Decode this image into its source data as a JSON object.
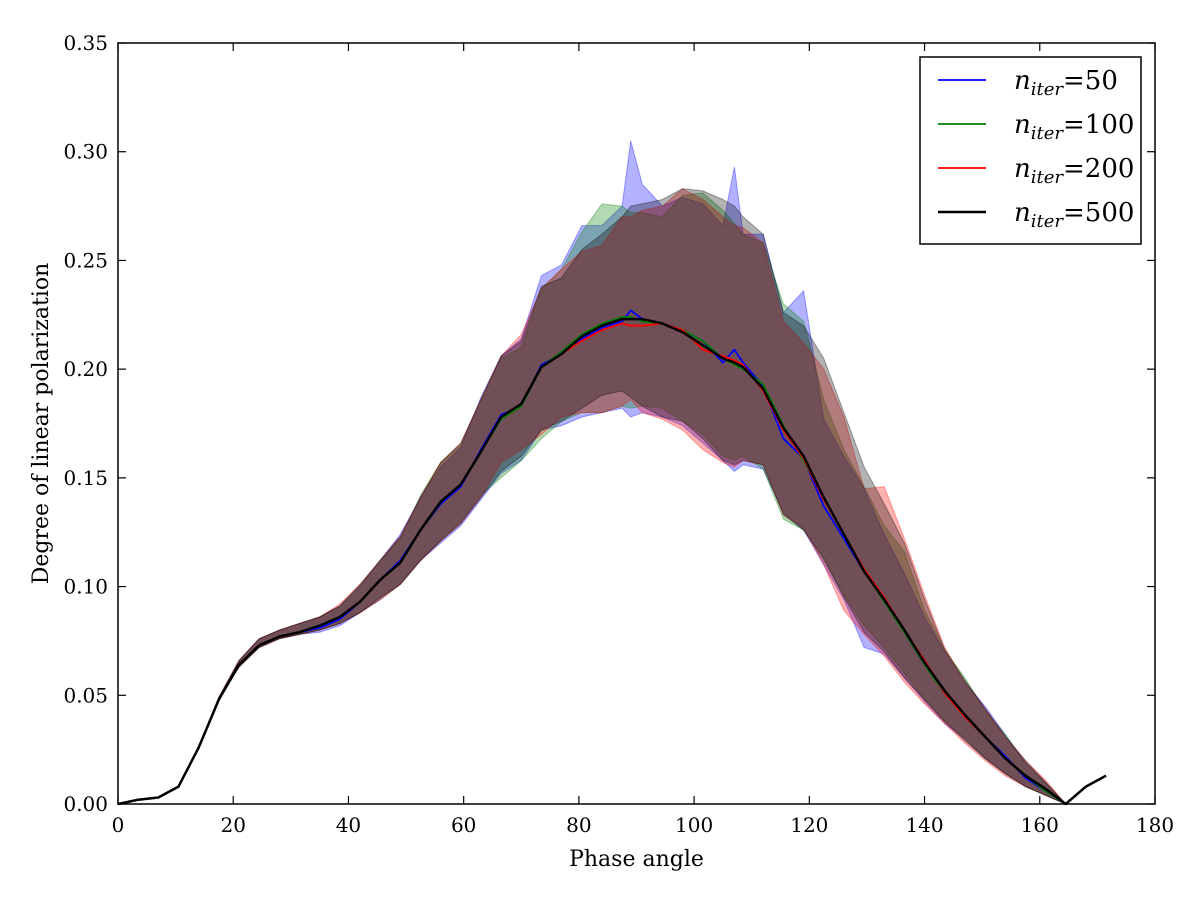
{
  "chart_data": {
    "type": "line",
    "title": "",
    "xlabel": "Phase angle",
    "ylabel": "Degree of linear polarization",
    "xlim": [
      0,
      180
    ],
    "ylim": [
      0,
      0.35
    ],
    "xticks": [
      0,
      20,
      40,
      60,
      80,
      100,
      120,
      140,
      160,
      180
    ],
    "xtick_labels": [
      "0",
      "20",
      "40",
      "60",
      "80",
      "100",
      "120",
      "140",
      "160",
      "180"
    ],
    "yticks": [
      0.0,
      0.05,
      0.1,
      0.15,
      0.2,
      0.25,
      0.3,
      0.35
    ],
    "ytick_labels": [
      "0.00",
      "0.05",
      "0.10",
      "0.15",
      "0.20",
      "0.25",
      "0.30",
      "0.35"
    ],
    "grid": false,
    "legend_position": "top-right",
    "x": [
      0,
      3.5,
      7,
      10.5,
      14,
      17.5,
      21,
      24.5,
      28,
      31.5,
      35,
      38.5,
      42,
      45.5,
      49,
      52.5,
      56,
      59.5,
      63,
      66.5,
      70,
      73.5,
      77,
      80.5,
      84,
      87.5,
      89,
      91,
      94.5,
      98,
      101.5,
      105,
      107,
      108.5,
      112,
      115.5,
      119,
      122.5,
      126,
      129.5,
      133,
      136.5,
      140,
      143.5,
      147,
      150.5,
      154,
      157.5,
      161,
      164.5,
      168,
      171.5
    ],
    "series": [
      {
        "name_prefix": "n",
        "name_sub": "iter",
        "name_value": "=50",
        "color": "#0000ff",
        "values": [
          0,
          0.002,
          0.003,
          0.008,
          0.026,
          0.048,
          0.064,
          0.073,
          0.077,
          0.079,
          0.081,
          0.085,
          0.093,
          0.103,
          0.112,
          0.126,
          0.138,
          0.146,
          0.163,
          0.179,
          0.183,
          0.202,
          0.207,
          0.214,
          0.219,
          0.222,
          0.227,
          0.223,
          0.221,
          0.218,
          0.213,
          0.203,
          0.209,
          0.203,
          0.192,
          0.168,
          0.159,
          0.137,
          0.122,
          0.107,
          0.094,
          0.079,
          0.064,
          0.052,
          0.041,
          0.031,
          0.022,
          0.012,
          0.006,
          0.0,
          0.008,
          0.013
        ],
        "lower": [
          0,
          0.002,
          0.003,
          0.008,
          0.026,
          0.048,
          0.063,
          0.072,
          0.076,
          0.078,
          0.079,
          0.082,
          0.088,
          0.094,
          0.101,
          0.112,
          0.12,
          0.128,
          0.14,
          0.152,
          0.158,
          0.172,
          0.174,
          0.178,
          0.18,
          0.182,
          0.178,
          0.18,
          0.178,
          0.174,
          0.166,
          0.158,
          0.153,
          0.156,
          0.154,
          0.134,
          0.126,
          0.11,
          0.094,
          0.072,
          0.069,
          0.058,
          0.047,
          0.037,
          0.03,
          0.021,
          0.014,
          0.008,
          0.004,
          0.0,
          0.008,
          0.013
        ],
        "upper": [
          0,
          0.002,
          0.003,
          0.008,
          0.026,
          0.049,
          0.066,
          0.076,
          0.08,
          0.083,
          0.086,
          0.091,
          0.1,
          0.112,
          0.124,
          0.141,
          0.155,
          0.164,
          0.187,
          0.206,
          0.214,
          0.243,
          0.248,
          0.266,
          0.266,
          0.275,
          0.305,
          0.285,
          0.275,
          0.279,
          0.276,
          0.266,
          0.293,
          0.262,
          0.262,
          0.226,
          0.236,
          0.177,
          0.16,
          0.145,
          0.124,
          0.106,
          0.086,
          0.07,
          0.056,
          0.045,
          0.032,
          0.019,
          0.01,
          0.0,
          0.008,
          0.013
        ]
      },
      {
        "name_prefix": "n",
        "name_sub": "iter",
        "name_value": "=100",
        "color": "#008000",
        "values": [
          0,
          0.002,
          0.003,
          0.008,
          0.026,
          0.048,
          0.064,
          0.073,
          0.077,
          0.079,
          0.082,
          0.086,
          0.093,
          0.103,
          0.111,
          0.126,
          0.139,
          0.147,
          0.162,
          0.177,
          0.183,
          0.201,
          0.208,
          0.216,
          0.221,
          0.224,
          0.224,
          0.222,
          0.221,
          0.218,
          0.213,
          0.205,
          0.202,
          0.2,
          0.193,
          0.174,
          0.158,
          0.141,
          0.124,
          0.107,
          0.093,
          0.079,
          0.064,
          0.051,
          0.041,
          0.031,
          0.021,
          0.013,
          0.006,
          0.0,
          0.008,
          0.013
        ],
        "lower": [
          0,
          0.002,
          0.003,
          0.008,
          0.026,
          0.048,
          0.063,
          0.072,
          0.076,
          0.078,
          0.08,
          0.083,
          0.088,
          0.094,
          0.101,
          0.112,
          0.121,
          0.13,
          0.142,
          0.15,
          0.158,
          0.168,
          0.176,
          0.18,
          0.18,
          0.183,
          0.182,
          0.183,
          0.182,
          0.176,
          0.17,
          0.16,
          0.158,
          0.16,
          0.154,
          0.131,
          0.126,
          0.112,
          0.096,
          0.082,
          0.072,
          0.06,
          0.048,
          0.038,
          0.03,
          0.021,
          0.014,
          0.008,
          0.004,
          0.0,
          0.008,
          0.013
        ],
        "upper": [
          0,
          0.002,
          0.003,
          0.008,
          0.026,
          0.049,
          0.066,
          0.076,
          0.08,
          0.083,
          0.086,
          0.091,
          0.1,
          0.112,
          0.122,
          0.142,
          0.157,
          0.165,
          0.186,
          0.205,
          0.21,
          0.237,
          0.246,
          0.263,
          0.276,
          0.275,
          0.272,
          0.272,
          0.27,
          0.28,
          0.281,
          0.273,
          0.267,
          0.262,
          0.258,
          0.23,
          0.222,
          0.186,
          0.163,
          0.146,
          0.128,
          0.116,
          0.089,
          0.071,
          0.058,
          0.043,
          0.032,
          0.019,
          0.01,
          0.0,
          0.008,
          0.013
        ]
      },
      {
        "name_prefix": "n",
        "name_sub": "iter",
        "name_value": "=200",
        "color": "#ff0000",
        "values": [
          0,
          0.002,
          0.003,
          0.008,
          0.026,
          0.048,
          0.064,
          0.073,
          0.077,
          0.079,
          0.082,
          0.086,
          0.093,
          0.103,
          0.111,
          0.126,
          0.139,
          0.147,
          0.162,
          0.178,
          0.184,
          0.201,
          0.207,
          0.213,
          0.218,
          0.221,
          0.22,
          0.22,
          0.221,
          0.218,
          0.209,
          0.206,
          0.204,
          0.202,
          0.19,
          0.172,
          0.159,
          0.14,
          0.124,
          0.108,
          0.095,
          0.08,
          0.066,
          0.051,
          0.04,
          0.031,
          0.021,
          0.013,
          0.007,
          0.0,
          0.008,
          0.013
        ],
        "lower": [
          0,
          0.002,
          0.003,
          0.008,
          0.026,
          0.048,
          0.063,
          0.072,
          0.076,
          0.078,
          0.08,
          0.083,
          0.088,
          0.094,
          0.101,
          0.112,
          0.121,
          0.129,
          0.141,
          0.157,
          0.163,
          0.17,
          0.178,
          0.18,
          0.18,
          0.183,
          0.186,
          0.18,
          0.177,
          0.172,
          0.163,
          0.157,
          0.155,
          0.158,
          0.156,
          0.133,
          0.127,
          0.11,
          0.089,
          0.078,
          0.068,
          0.056,
          0.046,
          0.037,
          0.028,
          0.02,
          0.013,
          0.008,
          0.004,
          0.0,
          0.008,
          0.013
        ],
        "upper": [
          0,
          0.002,
          0.003,
          0.008,
          0.026,
          0.049,
          0.066,
          0.076,
          0.08,
          0.083,
          0.086,
          0.092,
          0.101,
          0.112,
          0.123,
          0.141,
          0.157,
          0.166,
          0.186,
          0.206,
          0.216,
          0.237,
          0.246,
          0.254,
          0.257,
          0.27,
          0.27,
          0.273,
          0.275,
          0.283,
          0.278,
          0.27,
          0.266,
          0.265,
          0.258,
          0.222,
          0.212,
          0.2,
          0.178,
          0.145,
          0.146,
          0.122,
          0.096,
          0.072,
          0.056,
          0.044,
          0.031,
          0.02,
          0.011,
          0.0,
          0.008,
          0.013
        ]
      },
      {
        "name_prefix": "n",
        "name_sub": "iter",
        "name_value": "=500",
        "color": "#000000",
        "values": [
          0,
          0.002,
          0.003,
          0.008,
          0.026,
          0.048,
          0.064,
          0.073,
          0.077,
          0.079,
          0.082,
          0.086,
          0.093,
          0.103,
          0.111,
          0.126,
          0.139,
          0.147,
          0.162,
          0.178,
          0.184,
          0.201,
          0.207,
          0.215,
          0.22,
          0.223,
          0.223,
          0.223,
          0.221,
          0.217,
          0.211,
          0.205,
          0.203,
          0.201,
          0.191,
          0.173,
          0.16,
          0.141,
          0.124,
          0.107,
          0.094,
          0.08,
          0.065,
          0.052,
          0.041,
          0.031,
          0.021,
          0.013,
          0.007,
          0.0,
          0.008,
          0.013
        ],
        "lower": [
          0,
          0.002,
          0.003,
          0.008,
          0.026,
          0.048,
          0.063,
          0.072,
          0.076,
          0.078,
          0.08,
          0.083,
          0.088,
          0.095,
          0.101,
          0.112,
          0.121,
          0.129,
          0.141,
          0.153,
          0.16,
          0.172,
          0.176,
          0.182,
          0.188,
          0.19,
          0.187,
          0.183,
          0.178,
          0.176,
          0.168,
          0.158,
          0.156,
          0.158,
          0.156,
          0.133,
          0.126,
          0.113,
          0.095,
          0.079,
          0.07,
          0.058,
          0.048,
          0.038,
          0.029,
          0.021,
          0.014,
          0.008,
          0.004,
          0.0,
          0.008,
          0.013
        ],
        "upper": [
          0,
          0.002,
          0.003,
          0.008,
          0.026,
          0.049,
          0.066,
          0.076,
          0.08,
          0.083,
          0.086,
          0.091,
          0.101,
          0.112,
          0.123,
          0.141,
          0.157,
          0.166,
          0.186,
          0.206,
          0.213,
          0.238,
          0.242,
          0.255,
          0.262,
          0.27,
          0.275,
          0.276,
          0.278,
          0.283,
          0.282,
          0.278,
          0.275,
          0.27,
          0.262,
          0.226,
          0.22,
          0.205,
          0.18,
          0.155,
          0.138,
          0.12,
          0.094,
          0.071,
          0.057,
          0.044,
          0.031,
          0.02,
          0.01,
          0.0,
          0.008,
          0.013
        ]
      }
    ]
  }
}
